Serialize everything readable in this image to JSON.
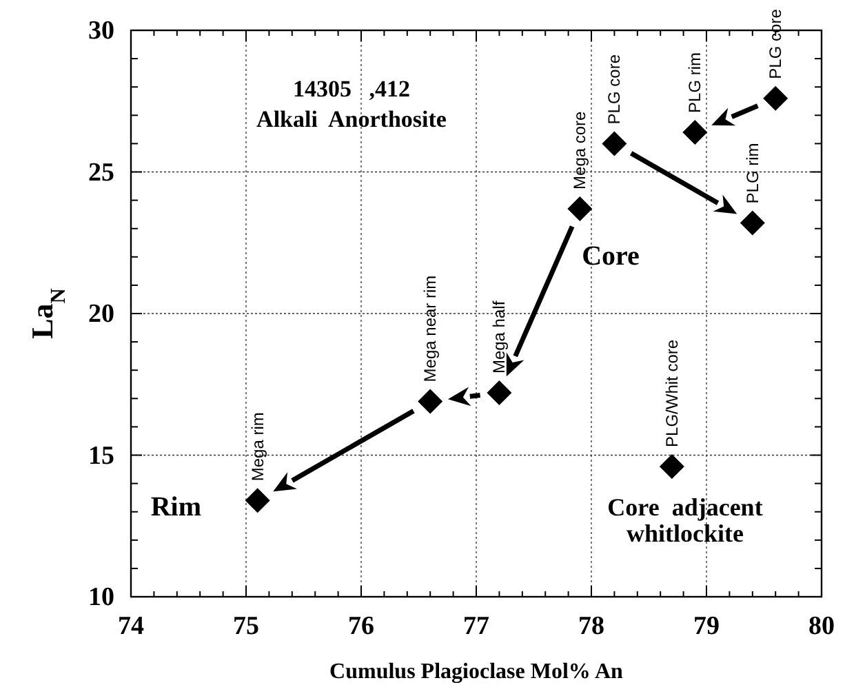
{
  "chart_data": {
    "type": "scatter",
    "xlabel": "Cumulus Plagioclase Mol% An",
    "ylabel": "La$_{N}$",
    "x": [
      75.1,
      76.6,
      77.2,
      77.9,
      78.2,
      78.9,
      79.4,
      79.6,
      78.7
    ],
    "series": [
      {
        "color": "#000000",
        "values": [
          13.4,
          16.9,
          17.2,
          23.7,
          26.0,
          26.4,
          23.2,
          27.6,
          14.6
        ]
      }
    ],
    "xlim": [
      74,
      80
    ],
    "xticks": [
      74,
      75,
      76,
      77,
      78,
      79,
      80
    ],
    "ylim": [
      10,
      30
    ],
    "yticks": [
      10,
      15,
      20,
      25,
      30
    ],
    "grid": true,
    "marker": "diamond",
    "annotations": [
      "14305   ,412",
      "Alkali  Anorthosite",
      "Core",
      "Rim",
      "Core  adjacent whitlockite",
      {
        "text": "Mega rim",
        "x": 75.1,
        "y": 13.4
      },
      {
        "text": "Mega near rim",
        "x": 76.6,
        "y": 16.9
      },
      {
        "text": "Mega half",
        "x": 77.2,
        "y": 17.2
      },
      {
        "text": "Mega core",
        "x": 77.9,
        "y": 23.7
      },
      {
        "text": "PLG core",
        "x": 78.2,
        "y": 26.0
      },
      {
        "text": "PLG rim",
        "x": 78.9,
        "y": 26.4
      },
      {
        "text": "PLG rim",
        "x": 79.4,
        "y": 23.2
      },
      {
        "text": "PLG core",
        "x": 79.6,
        "y": 27.6
      },
      {
        "text": "PLG/Whit core",
        "x": 78.7,
        "y": 14.6
      }
    ]
  }
}
